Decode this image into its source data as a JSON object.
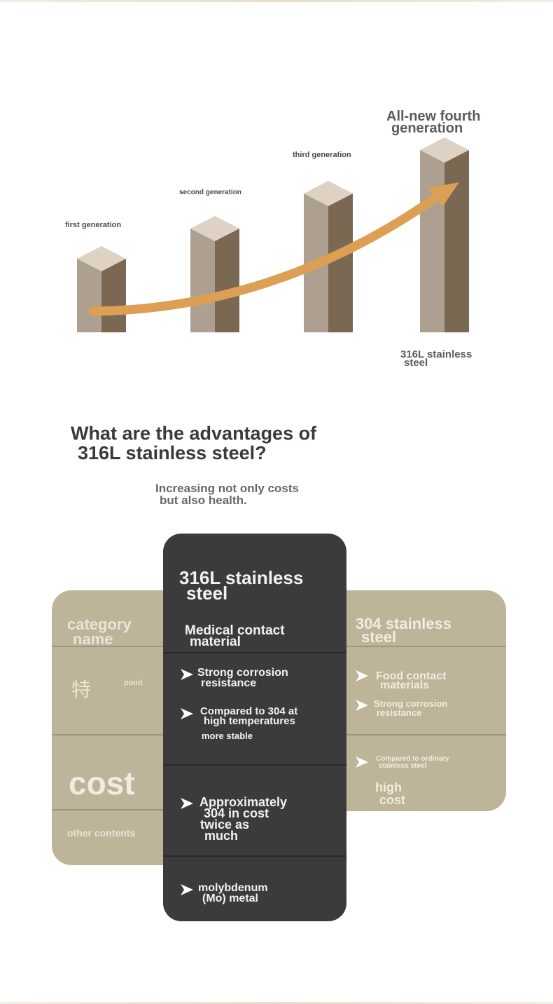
{
  "chart": {
    "generations": [
      {
        "label": "first generation"
      },
      {
        "label": "second generation"
      },
      {
        "label": "third generation"
      },
      {
        "label_line1": "All-new fourth",
        "label_line2": "generation",
        "material_line1": "316L stainless",
        "material_line2": "steel"
      }
    ],
    "colors": {
      "pillar_top": "#ddd2c4",
      "pillar_left": "#ada091",
      "pillar_right": "#7a6853",
      "arrow": "#dd9f54"
    }
  },
  "question": {
    "line1": "What are the advantages of",
    "line2": "316L stainless steel?"
  },
  "subtitle": {
    "line1": "Increasing not only costs",
    "line2": "but also health."
  },
  "comparison": {
    "left": {
      "category_line1": "category",
      "category_line2": "name",
      "char": "特",
      "point": "point",
      "cost": "cost",
      "other": "other contents"
    },
    "center": {
      "title_line1": "316L stainless",
      "title_line2": "steel",
      "category_line1": "Medical contact",
      "category_line2": "material",
      "points": [
        {
          "line1": "Strong corrosion",
          "line2": "resistance"
        },
        {
          "line1": "Compared to 304 at",
          "line2": "high temperatures",
          "line3": "more stable"
        }
      ],
      "cost": {
        "line1": "Approximately",
        "line2": "304 in cost",
        "line3": "twice as",
        "line4": "much"
      },
      "other": {
        "line1": "molybdenum",
        "line2": "(Mo) metal"
      }
    },
    "right": {
      "title_line1": "304 stainless",
      "title_line2": "steel",
      "points": [
        {
          "line1": "Food contact",
          "line2": "materials"
        },
        {
          "line1": "Strong corrosion",
          "line2": "resistance"
        }
      ],
      "cost_note": {
        "line1": "Compared to ordinary",
        "line2": "stainless steel"
      },
      "cost": {
        "line1": "high",
        "line2": "cost"
      }
    },
    "colors": {
      "panel": "#bdb49a",
      "center": "#3b3b3b"
    }
  }
}
